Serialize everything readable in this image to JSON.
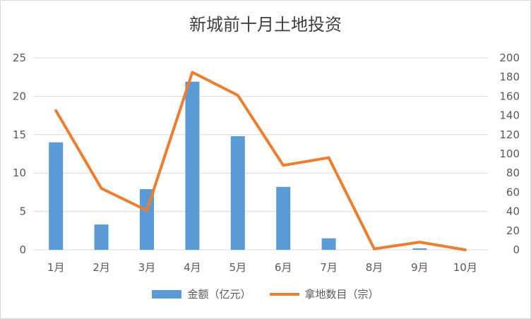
{
  "chart_data": {
    "type": "bar+line",
    "title": "新城前十月土地投资",
    "categories": [
      "1月",
      "2月",
      "3月",
      "4月",
      "5月",
      "6月",
      "7月",
      "8月",
      "9月",
      "10月"
    ],
    "series": [
      {
        "name": "金额（亿元）",
        "type": "bar",
        "axis": "left",
        "color": "#5b9bd5",
        "values": [
          14.0,
          3.3,
          7.9,
          21.9,
          14.8,
          8.2,
          1.5,
          0,
          0.2,
          0
        ]
      },
      {
        "name": "拿地数目（宗）",
        "type": "line",
        "axis": "right",
        "color": "#ed7d31",
        "values": [
          145,
          64,
          41,
          185,
          161,
          88,
          96,
          1,
          8,
          0
        ]
      }
    ],
    "y_left": {
      "min": 0,
      "max": 25,
      "step": 5,
      "ticks": [
        "0",
        "5",
        "10",
        "15",
        "20",
        "25"
      ]
    },
    "y_right": {
      "min": 0,
      "max": 200,
      "step": 20,
      "ticks": [
        "0",
        "20",
        "40",
        "60",
        "80",
        "100",
        "120",
        "140",
        "160",
        "180",
        "200"
      ]
    },
    "grid": true,
    "legend_position": "bottom"
  }
}
